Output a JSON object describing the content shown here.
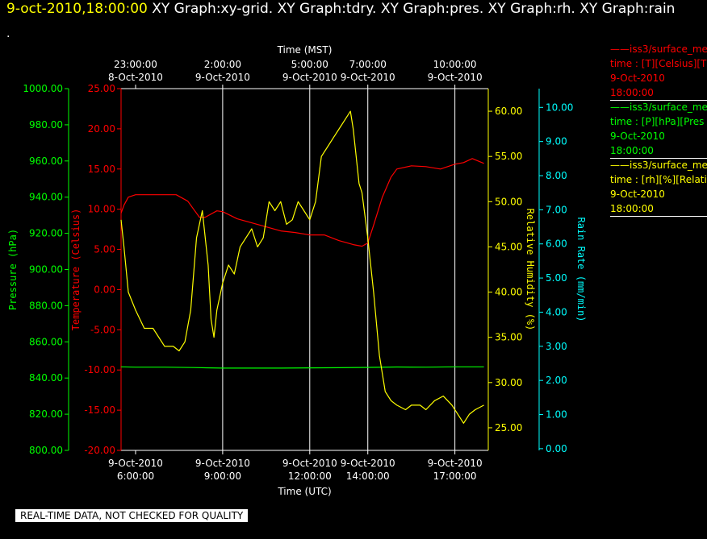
{
  "header": {
    "datetime": "9-oct-2010,18:00:00",
    "graphs": "XY Graph:xy-grid.  XY Graph:tdry.  XY Graph:pres.  XY Graph:rh.  XY Graph:rain",
    "dot": "."
  },
  "footer": {
    "quality_note": "REAL-TIME DATA, NOT CHECKED FOR QUALITY"
  },
  "legend": [
    {
      "lines": [
        "——iss3/surface_me",
        "time : [T][Celsius][T",
        "9-Oct-2010",
        "18:00:00"
      ],
      "color": "#ff0000"
    },
    {
      "lines": [
        "——iss3/surface_me",
        "time : [P][hPa][Pres",
        "9-Oct-2010",
        "18:00:00"
      ],
      "color": "#00ff00"
    },
    {
      "lines": [
        "——iss3/surface_me",
        "time : [rh][%][Relati",
        "9-Oct-2010",
        "18:00:00"
      ],
      "color": "#ffff00"
    }
  ],
  "colors": {
    "temperature": "#ff0000",
    "pressure": "#00ff00",
    "humidity": "#ffff00",
    "rain": "#00ffff",
    "grid": "#ffffff"
  },
  "chart_data": {
    "type": "line",
    "x_range_utc_hours": [
      5.5,
      18.15
    ],
    "xlabel_bottom": "Time (UTC)",
    "xlabel_top": "Time (MST)",
    "bottom_ticks": [
      {
        "hour": 6,
        "date": "9-Oct-2010",
        "time": "6:00:00"
      },
      {
        "hour": 9,
        "date": "9-Oct-2010",
        "time": "9:00:00"
      },
      {
        "hour": 12,
        "date": "9-Oct-2010",
        "time": "12:00:00"
      },
      {
        "hour": 14,
        "date": "9-Oct-2010",
        "time": "14:00:00"
      },
      {
        "hour": 17,
        "date": "9-Oct-2010",
        "time": "17:00:00"
      }
    ],
    "top_ticks": [
      {
        "hour": 6,
        "time": "23:00:00",
        "date": "8-Oct-2010"
      },
      {
        "hour": 9,
        "time": "2:00:00",
        "date": "9-Oct-2010"
      },
      {
        "hour": 12,
        "time": "5:00:00",
        "date": "9-Oct-2010"
      },
      {
        "hour": 14,
        "time": "7:00:00",
        "date": "9-Oct-2010"
      },
      {
        "hour": 17,
        "time": "10:00:00",
        "date": "9-Oct-2010"
      }
    ],
    "grid_vertical_hours": [
      9,
      12,
      14,
      17
    ],
    "axes": {
      "pressure": {
        "label": "Pressure (hPa)",
        "range": [
          800,
          1000
        ],
        "ticks": [
          "800.00",
          "820.00",
          "840.00",
          "860.00",
          "880.00",
          "900.00",
          "920.00",
          "940.00",
          "960.00",
          "980.00",
          "1000.00"
        ]
      },
      "temperature": {
        "label": "Temperature (Celsius)",
        "range": [
          -20,
          25
        ],
        "ticks": [
          "-20.00",
          "-15.00",
          "-10.00",
          "-5.00",
          "0.00",
          "5.00",
          "10.00",
          "15.00",
          "20.00",
          "25.00"
        ]
      },
      "humidity": {
        "label": "Relative Humidity (%)",
        "range": [
          22.5,
          62.5
        ],
        "ticks": [
          "25.00",
          "30.00",
          "35.00",
          "40.00",
          "45.00",
          "50.00",
          "55.00",
          "60.00"
        ]
      },
      "rain": {
        "label": "Rain Rate (mm/min)",
        "range": [
          -0.05,
          10.55
        ],
        "ticks": [
          "0.00",
          "1.00",
          "2.00",
          "3.00",
          "4.00",
          "5.00",
          "6.00",
          "7.00",
          "8.00",
          "9.00",
          "10.00"
        ]
      }
    },
    "series": [
      {
        "name": "temperature",
        "x": [
          5.5,
          5.6,
          5.75,
          6.0,
          6.5,
          7.0,
          7.4,
          7.8,
          8.0,
          8.2,
          8.4,
          8.8,
          9.0,
          9.5,
          10.0,
          10.5,
          11.0,
          11.5,
          12.0,
          12.5,
          13.0,
          13.5,
          13.8,
          14.0,
          14.2,
          14.5,
          14.8,
          15.0,
          15.5,
          16.0,
          16.5,
          17.0,
          17.3,
          17.6,
          18.0
        ],
        "y": [
          9.5,
          10.5,
          11.5,
          11.8,
          11.8,
          11.8,
          11.8,
          11.0,
          10.0,
          9.0,
          9.0,
          9.8,
          9.7,
          8.8,
          8.3,
          7.8,
          7.3,
          7.1,
          6.8,
          6.8,
          6.1,
          5.6,
          5.4,
          5.8,
          8.0,
          11.5,
          14.0,
          15.0,
          15.4,
          15.3,
          15.0,
          15.6,
          15.8,
          16.3,
          15.7
        ]
      },
      {
        "name": "pressure",
        "x": [
          5.5,
          6.0,
          7.0,
          8.0,
          9.0,
          10.0,
          11.0,
          12.0,
          13.0,
          14.0,
          15.0,
          16.0,
          17.0,
          18.0
        ],
        "y": [
          846.2,
          846.0,
          846.0,
          845.8,
          845.5,
          845.5,
          845.5,
          845.6,
          845.7,
          845.9,
          846.1,
          846.0,
          846.2,
          846.2
        ]
      },
      {
        "name": "humidity",
        "x": [
          5.5,
          5.6,
          5.75,
          6.0,
          6.3,
          6.6,
          7.0,
          7.3,
          7.5,
          7.7,
          7.9,
          8.1,
          8.3,
          8.5,
          8.6,
          8.7,
          8.8,
          9.0,
          9.2,
          9.4,
          9.6,
          9.8,
          10.0,
          10.2,
          10.4,
          10.5,
          10.6,
          10.8,
          11.0,
          11.2,
          11.4,
          11.6,
          11.8,
          12.0,
          12.2,
          12.4,
          12.6,
          12.8,
          13.0,
          13.2,
          13.4,
          13.5,
          13.6,
          13.7,
          13.8,
          14.0,
          14.2,
          14.4,
          14.6,
          14.8,
          15.0,
          15.3,
          15.5,
          15.8,
          16.0,
          16.3,
          16.6,
          16.9,
          17.1,
          17.3,
          17.5,
          17.7,
          18.0
        ],
        "y": [
          48,
          45,
          40,
          38,
          36,
          36,
          34,
          34,
          33.5,
          34.5,
          38,
          46,
          49,
          43,
          37,
          35,
          38,
          41,
          43,
          42,
          45,
          46,
          47,
          45,
          46,
          48,
          50,
          49,
          50,
          47.5,
          48,
          50,
          49,
          48,
          50,
          55,
          56,
          57,
          58,
          59,
          60,
          58,
          55,
          52,
          51,
          46,
          40,
          33,
          29,
          28,
          27.5,
          27,
          27.5,
          27.5,
          27,
          28,
          28.5,
          27.5,
          26.5,
          25.5,
          26.5,
          27,
          27.5
        ]
      },
      {
        "name": "rain",
        "x": [],
        "y": []
      }
    ]
  }
}
